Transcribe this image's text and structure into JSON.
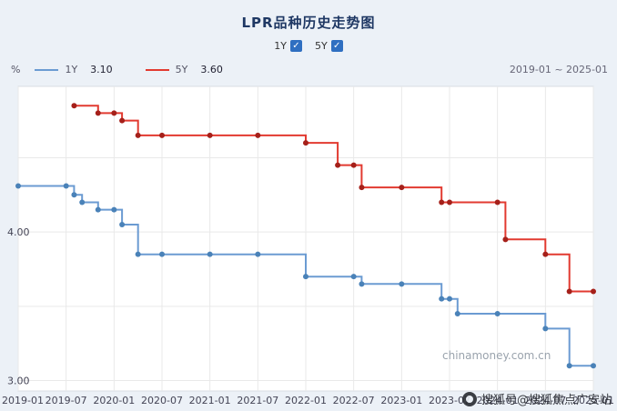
{
  "colors": {
    "page_bg": "#ecf1f7",
    "title": "#1f3864",
    "accent_blue": "#2f6fc1",
    "plot_bg": "#ffffff",
    "grid": "#e9e9e9",
    "plot_border": "#d8dde3"
  },
  "header": {
    "title": "LPR品种历史走势图",
    "check_glyph": "✓",
    "toggles": [
      {
        "label": "1Y",
        "checked": true
      },
      {
        "label": "5Y",
        "checked": true
      }
    ]
  },
  "legend": {
    "unit": "%",
    "items": [
      {
        "name": "1Y",
        "value": "3.10",
        "color": "#6b9bd2"
      },
      {
        "name": "5Y",
        "value": "3.60",
        "color": "#e23a30"
      }
    ],
    "date_range": "2019-01 ~ 2025-01"
  },
  "watermarks": {
    "chinamoney": "chinamoney.com.cn",
    "sohu": "搜狐号@搜狐焦点广安站"
  },
  "chart_data": {
    "type": "line",
    "step": true,
    "title": "LPR品种历史走势图",
    "ylabel": "%",
    "x_start": "2019-01",
    "x_end": "2025-01",
    "x_ticks": [
      "2019-01",
      "2019-07",
      "2020-01",
      "2020-07",
      "2021-01",
      "2021-07",
      "2022-01",
      "2022-07",
      "2023-01",
      "2023-07",
      "2024-01",
      "2024-07",
      "2025-01"
    ],
    "y_ticks_labeled": [
      "3.00",
      "4.00"
    ],
    "y_grid": [
      3.0,
      3.5,
      4.0,
      4.5
    ],
    "ylim": [
      2.93,
      4.98
    ],
    "grid": true,
    "legend_position": "top-left",
    "series": [
      {
        "name": "1Y",
        "color": "#6b9bd2",
        "dot_color": "#4a82b8",
        "latest": "3.10",
        "changes": [
          [
            "2019-01",
            4.31
          ],
          [
            "2019-08",
            4.25
          ],
          [
            "2019-09",
            4.2
          ],
          [
            "2019-11",
            4.15
          ],
          [
            "2020-02",
            4.05
          ],
          [
            "2020-04",
            3.85
          ],
          [
            "2022-01",
            3.7
          ],
          [
            "2022-08",
            3.65
          ],
          [
            "2023-06",
            3.55
          ],
          [
            "2023-08",
            3.45
          ],
          [
            "2024-07",
            3.35
          ],
          [
            "2024-10",
            3.1
          ]
        ]
      },
      {
        "name": "5Y",
        "color": "#e23a30",
        "dot_color": "#a5201a",
        "latest": "3.60",
        "changes": [
          [
            "2019-08",
            4.85
          ],
          [
            "2019-11",
            4.8
          ],
          [
            "2020-02",
            4.75
          ],
          [
            "2020-04",
            4.65
          ],
          [
            "2022-01",
            4.6
          ],
          [
            "2022-05",
            4.45
          ],
          [
            "2022-08",
            4.3
          ],
          [
            "2023-06",
            4.2
          ],
          [
            "2024-02",
            3.95
          ],
          [
            "2024-07",
            3.85
          ],
          [
            "2024-10",
            3.6
          ]
        ]
      }
    ]
  }
}
